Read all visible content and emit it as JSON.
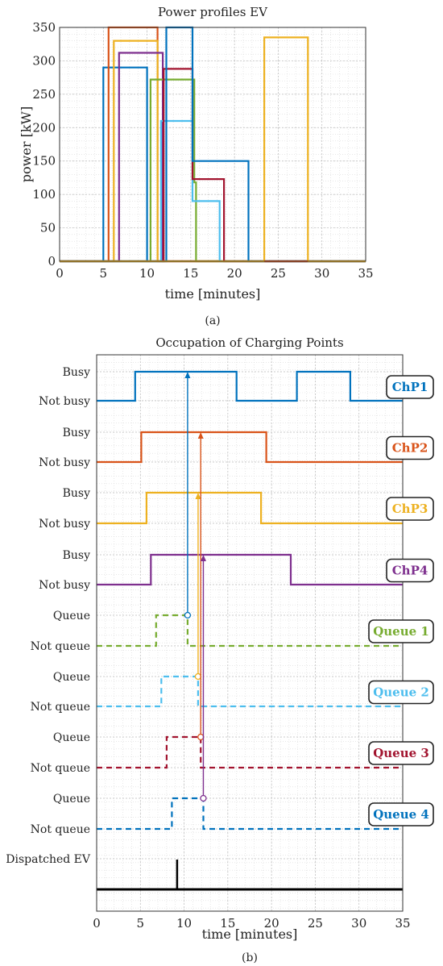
{
  "captions": {
    "a": "(a)",
    "b": "(b)"
  },
  "chart_data": [
    {
      "type": "line",
      "title": "Power profiles EV",
      "xlabel": "time [minutes]",
      "ylabel": "power [kW]",
      "xlim": [
        0,
        35
      ],
      "ylim": [
        0,
        350
      ],
      "xticks": [
        0,
        5,
        10,
        15,
        20,
        25,
        30,
        35
      ],
      "yticks": [
        0,
        50,
        100,
        150,
        200,
        250,
        300,
        350
      ],
      "grid": true,
      "minor_grid": true,
      "series": [
        {
          "color": "#0072BD",
          "x": [
            0,
            5,
            5,
            10,
            10,
            35
          ],
          "y": [
            0,
            0,
            290,
            290,
            0,
            0
          ]
        },
        {
          "color": "#D95319",
          "x": [
            0,
            5.6,
            5.6,
            11.2,
            11.2,
            35
          ],
          "y": [
            0,
            0,
            350,
            350,
            0,
            0
          ]
        },
        {
          "color": "#EDB120",
          "x": [
            0,
            6.2,
            6.2,
            11.2,
            11.2,
            35
          ],
          "y": [
            0,
            0,
            330,
            330,
            0,
            0
          ]
        },
        {
          "color": "#7E2F8E",
          "x": [
            0,
            6.8,
            6.8,
            11.8,
            11.8,
            35
          ],
          "y": [
            0,
            0,
            312,
            312,
            0,
            0
          ]
        },
        {
          "color": "#77AC30",
          "x": [
            0,
            10.4,
            10.4,
            15.4,
            15.4,
            15.6,
            15.6,
            35
          ],
          "y": [
            0,
            0,
            272,
            272,
            118,
            118,
            0,
            0
          ]
        },
        {
          "color": "#4DBEEE",
          "x": [
            0,
            11.6,
            11.6,
            15.2,
            15.2,
            18.3,
            18.3,
            35
          ],
          "y": [
            0,
            0,
            210,
            210,
            90,
            90,
            0,
            0
          ]
        },
        {
          "color": "#A2142F",
          "x": [
            0,
            11.9,
            11.9,
            15.2,
            15.2,
            18.8,
            18.8,
            35
          ],
          "y": [
            0,
            0,
            288,
            288,
            123,
            123,
            0,
            0
          ]
        },
        {
          "color": "#0072BD",
          "x": [
            0,
            12.2,
            12.2,
            15.2,
            15.2,
            21.6,
            21.6,
            35
          ],
          "y": [
            0,
            0,
            350,
            350,
            150,
            150,
            0,
            0
          ]
        },
        {
          "color": "#EDB120",
          "x": [
            0,
            23.4,
            23.4,
            28.4,
            28.4,
            35
          ],
          "y": [
            0,
            0,
            335,
            335,
            0,
            0
          ]
        },
        {
          "color": "#D95319",
          "x": [
            23.4,
            28.4
          ],
          "y": [
            0,
            0
          ]
        }
      ]
    },
    {
      "type": "line",
      "title": "Occupation of Charging Points",
      "xlabel": "time [minutes]",
      "xlim": [
        0,
        35
      ],
      "xticks": [
        0,
        5,
        10,
        15,
        20,
        25,
        30,
        35
      ],
      "grid": true,
      "minor_grid": true,
      "ylabels": [
        "Busy",
        "Not busy",
        "Busy",
        "Not busy",
        "Busy",
        "Not busy",
        "Busy",
        "Not busy",
        "Queue",
        "Not queue",
        "Queue",
        "Not queue",
        "Queue",
        "Not queue",
        "Queue",
        "Not queue",
        "Dispatched EV"
      ],
      "rows": [
        {
          "name": "ChP1",
          "color": "#0072BD",
          "dashed": false,
          "intervals": [
            [
              4.4,
              16
            ],
            [
              22.9,
              29.0
            ]
          ]
        },
        {
          "name": "ChP2",
          "color": "#D95319",
          "dashed": false,
          "intervals": [
            [
              5.1,
              19.4
            ]
          ]
        },
        {
          "name": "ChP3",
          "color": "#EDB120",
          "dashed": false,
          "intervals": [
            [
              5.7,
              18.8
            ]
          ]
        },
        {
          "name": "ChP4",
          "color": "#7E2F8E",
          "dashed": false,
          "intervals": [
            [
              6.2,
              22.2
            ]
          ]
        },
        {
          "name": "Queue 1",
          "color": "#77AC30",
          "dashed": true,
          "intervals": [
            [
              6.8,
              10.4
            ]
          ]
        },
        {
          "name": "Queue 2",
          "color": "#4DBEEE",
          "dashed": true,
          "intervals": [
            [
              7.4,
              11.6
            ]
          ]
        },
        {
          "name": "Queue 3",
          "color": "#A2142F",
          "dashed": true,
          "intervals": [
            [
              8.0,
              11.9
            ]
          ]
        },
        {
          "name": "Queue 4",
          "color": "#0072BD",
          "dashed": true,
          "intervals": [
            [
              8.6,
              12.2
            ]
          ]
        }
      ],
      "dispatched": {
        "color": "#000000",
        "impulse_at": 9.2
      },
      "arrows": [
        {
          "x": 10.4,
          "from_row": 4,
          "to_row": 0,
          "color": "#0072BD"
        },
        {
          "x": 11.6,
          "from_row": 5,
          "to_row": 2,
          "color": "#EDB120"
        },
        {
          "x": 11.9,
          "from_row": 6,
          "to_row": 1,
          "color": "#D95319"
        },
        {
          "x": 12.2,
          "from_row": 7,
          "to_row": 3,
          "color": "#7E2F8E"
        }
      ]
    }
  ]
}
